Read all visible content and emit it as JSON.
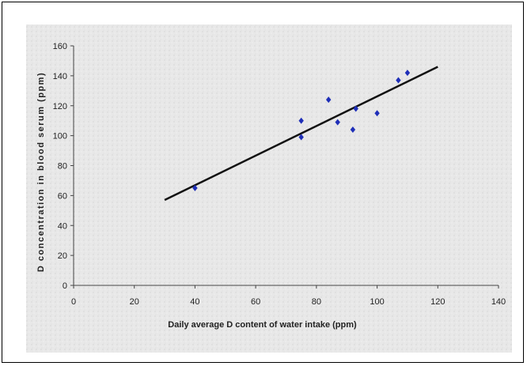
{
  "chart_data": {
    "type": "scatter",
    "xlabel": "Daily average D content of water intake (ppm)",
    "ylabel": "D concentration in blood serum (ppm)",
    "xlim": [
      0,
      140
    ],
    "ylim": [
      0,
      160
    ],
    "x_ticks": [
      "0",
      "20",
      "40",
      "60",
      "80",
      "100",
      "120",
      "140"
    ],
    "y_ticks": [
      "0",
      "20",
      "40",
      "60",
      "80",
      "100",
      "120",
      "140",
      "160"
    ],
    "grid": false,
    "legend": "none",
    "series": [
      {
        "points": [
          {
            "x": 40,
            "y": 65
          },
          {
            "x": 75,
            "y": 110
          },
          {
            "x": 75,
            "y": 99
          },
          {
            "x": 84,
            "y": 124
          },
          {
            "x": 87,
            "y": 109
          },
          {
            "x": 92,
            "y": 104
          },
          {
            "x": 93,
            "y": 118
          },
          {
            "x": 100,
            "y": 115
          },
          {
            "x": 107,
            "y": 137
          },
          {
            "x": 110,
            "y": 142
          }
        ]
      }
    ],
    "trendline": {
      "x": [
        30,
        120
      ],
      "y": [
        57,
        146
      ]
    },
    "colors": {
      "markers": "#1f2fb8",
      "trendline": "#111111",
      "background": "#e9e9e9"
    }
  }
}
